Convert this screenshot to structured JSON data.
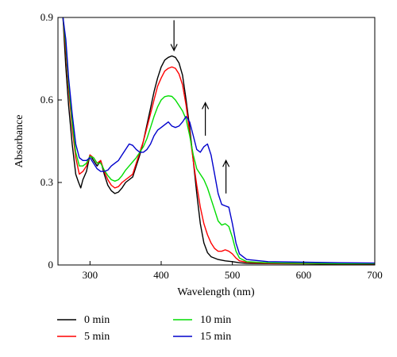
{
  "chart_data": {
    "type": "line",
    "xlabel": "Wavelength (nm)",
    "ylabel": "Absorbance",
    "xlim": [
      255,
      700
    ],
    "ylim": [
      0,
      0.9
    ],
    "xticks": [
      300,
      400,
      500,
      600,
      700
    ],
    "yticks": [
      0,
      0.3,
      0.6,
      0.9
    ],
    "xtick_labels": [
      "300",
      "400",
      "500",
      "600",
      "700"
    ],
    "ytick_labels": [
      "0",
      "0.3",
      "0.6",
      "0.9"
    ],
    "grid": false,
    "legend_position": "bottom",
    "series": [
      {
        "name": "0 min",
        "color": "#000000",
        "points": [
          [
            262,
            0.9
          ],
          [
            266,
            0.72
          ],
          [
            270,
            0.58
          ],
          [
            275,
            0.44
          ],
          [
            280,
            0.33
          ],
          [
            284,
            0.3
          ],
          [
            287,
            0.28
          ],
          [
            290,
            0.31
          ],
          [
            295,
            0.34
          ],
          [
            300,
            0.4
          ],
          [
            305,
            0.38
          ],
          [
            310,
            0.36
          ],
          [
            315,
            0.38
          ],
          [
            320,
            0.33
          ],
          [
            325,
            0.29
          ],
          [
            330,
            0.27
          ],
          [
            335,
            0.26
          ],
          [
            340,
            0.265
          ],
          [
            345,
            0.28
          ],
          [
            350,
            0.3
          ],
          [
            355,
            0.31
          ],
          [
            360,
            0.32
          ],
          [
            365,
            0.36
          ],
          [
            370,
            0.4
          ],
          [
            375,
            0.45
          ],
          [
            380,
            0.51
          ],
          [
            385,
            0.57
          ],
          [
            390,
            0.63
          ],
          [
            395,
            0.68
          ],
          [
            400,
            0.72
          ],
          [
            405,
            0.745
          ],
          [
            410,
            0.755
          ],
          [
            415,
            0.76
          ],
          [
            420,
            0.755
          ],
          [
            425,
            0.735
          ],
          [
            430,
            0.69
          ],
          [
            435,
            0.6
          ],
          [
            440,
            0.5
          ],
          [
            445,
            0.38
          ],
          [
            450,
            0.26
          ],
          [
            455,
            0.15
          ],
          [
            460,
            0.08
          ],
          [
            465,
            0.045
          ],
          [
            470,
            0.03
          ],
          [
            480,
            0.02
          ],
          [
            490,
            0.015
          ],
          [
            500,
            0.012
          ],
          [
            510,
            0.008
          ],
          [
            520,
            0.006
          ],
          [
            550,
            0.005
          ],
          [
            600,
            0.004
          ],
          [
            650,
            0.003
          ],
          [
            700,
            0.003
          ]
        ]
      },
      {
        "name": "5 min",
        "color": "#ff0000",
        "points": [
          [
            262,
            0.9
          ],
          [
            266,
            0.78
          ],
          [
            270,
            0.64
          ],
          [
            275,
            0.5
          ],
          [
            280,
            0.39
          ],
          [
            285,
            0.33
          ],
          [
            290,
            0.34
          ],
          [
            295,
            0.36
          ],
          [
            300,
            0.4
          ],
          [
            305,
            0.39
          ],
          [
            310,
            0.37
          ],
          [
            315,
            0.38
          ],
          [
            320,
            0.34
          ],
          [
            325,
            0.31
          ],
          [
            330,
            0.29
          ],
          [
            335,
            0.28
          ],
          [
            340,
            0.285
          ],
          [
            345,
            0.3
          ],
          [
            350,
            0.31
          ],
          [
            355,
            0.32
          ],
          [
            360,
            0.33
          ],
          [
            365,
            0.37
          ],
          [
            370,
            0.41
          ],
          [
            375,
            0.45
          ],
          [
            380,
            0.5
          ],
          [
            385,
            0.55
          ],
          [
            390,
            0.6
          ],
          [
            395,
            0.65
          ],
          [
            400,
            0.68
          ],
          [
            405,
            0.705
          ],
          [
            410,
            0.715
          ],
          [
            415,
            0.72
          ],
          [
            420,
            0.715
          ],
          [
            425,
            0.695
          ],
          [
            430,
            0.655
          ],
          [
            435,
            0.58
          ],
          [
            440,
            0.48
          ],
          [
            445,
            0.38
          ],
          [
            450,
            0.29
          ],
          [
            455,
            0.21
          ],
          [
            460,
            0.15
          ],
          [
            465,
            0.11
          ],
          [
            470,
            0.08
          ],
          [
            475,
            0.06
          ],
          [
            480,
            0.05
          ],
          [
            485,
            0.05
          ],
          [
            490,
            0.055
          ],
          [
            495,
            0.05
          ],
          [
            500,
            0.04
          ],
          [
            505,
            0.025
          ],
          [
            510,
            0.015
          ],
          [
            520,
            0.01
          ],
          [
            550,
            0.006
          ],
          [
            600,
            0.005
          ],
          [
            650,
            0.004
          ],
          [
            700,
            0.004
          ]
        ]
      },
      {
        "name": "10 min",
        "color": "#00dd00",
        "points": [
          [
            262,
            0.9
          ],
          [
            266,
            0.8
          ],
          [
            270,
            0.66
          ],
          [
            275,
            0.52
          ],
          [
            280,
            0.41
          ],
          [
            285,
            0.36
          ],
          [
            290,
            0.36
          ],
          [
            295,
            0.37
          ],
          [
            300,
            0.395
          ],
          [
            305,
            0.39
          ],
          [
            310,
            0.37
          ],
          [
            315,
            0.37
          ],
          [
            320,
            0.345
          ],
          [
            325,
            0.325
          ],
          [
            330,
            0.31
          ],
          [
            335,
            0.305
          ],
          [
            340,
            0.31
          ],
          [
            345,
            0.325
          ],
          [
            350,
            0.345
          ],
          [
            355,
            0.36
          ],
          [
            360,
            0.375
          ],
          [
            365,
            0.39
          ],
          [
            370,
            0.41
          ],
          [
            375,
            0.43
          ],
          [
            380,
            0.46
          ],
          [
            385,
            0.5
          ],
          [
            390,
            0.54
          ],
          [
            395,
            0.575
          ],
          [
            400,
            0.6
          ],
          [
            405,
            0.612
          ],
          [
            410,
            0.615
          ],
          [
            415,
            0.613
          ],
          [
            420,
            0.6
          ],
          [
            425,
            0.58
          ],
          [
            430,
            0.56
          ],
          [
            435,
            0.53
          ],
          [
            440,
            0.47
          ],
          [
            445,
            0.4
          ],
          [
            450,
            0.35
          ],
          [
            455,
            0.33
          ],
          [
            460,
            0.31
          ],
          [
            465,
            0.28
          ],
          [
            470,
            0.24
          ],
          [
            475,
            0.2
          ],
          [
            480,
            0.16
          ],
          [
            485,
            0.145
          ],
          [
            490,
            0.15
          ],
          [
            495,
            0.14
          ],
          [
            500,
            0.1
          ],
          [
            505,
            0.05
          ],
          [
            510,
            0.025
          ],
          [
            520,
            0.012
          ],
          [
            550,
            0.008
          ],
          [
            600,
            0.006
          ],
          [
            650,
            0.005
          ],
          [
            700,
            0.005
          ]
        ]
      },
      {
        "name": "15 min",
        "color": "#0000cc",
        "points": [
          [
            262,
            0.9
          ],
          [
            266,
            0.82
          ],
          [
            270,
            0.68
          ],
          [
            275,
            0.55
          ],
          [
            280,
            0.44
          ],
          [
            285,
            0.39
          ],
          [
            290,
            0.38
          ],
          [
            295,
            0.38
          ],
          [
            300,
            0.39
          ],
          [
            305,
            0.37
          ],
          [
            310,
            0.35
          ],
          [
            315,
            0.34
          ],
          [
            320,
            0.34
          ],
          [
            325,
            0.345
          ],
          [
            330,
            0.36
          ],
          [
            335,
            0.37
          ],
          [
            340,
            0.38
          ],
          [
            345,
            0.4
          ],
          [
            350,
            0.42
          ],
          [
            355,
            0.44
          ],
          [
            360,
            0.435
          ],
          [
            365,
            0.42
          ],
          [
            370,
            0.41
          ],
          [
            375,
            0.41
          ],
          [
            380,
            0.42
          ],
          [
            385,
            0.44
          ],
          [
            390,
            0.47
          ],
          [
            395,
            0.49
          ],
          [
            400,
            0.5
          ],
          [
            405,
            0.51
          ],
          [
            410,
            0.52
          ],
          [
            415,
            0.505
          ],
          [
            420,
            0.5
          ],
          [
            425,
            0.505
          ],
          [
            430,
            0.52
          ],
          [
            435,
            0.54
          ],
          [
            440,
            0.52
          ],
          [
            445,
            0.47
          ],
          [
            450,
            0.42
          ],
          [
            455,
            0.41
          ],
          [
            460,
            0.43
          ],
          [
            465,
            0.44
          ],
          [
            470,
            0.4
          ],
          [
            475,
            0.33
          ],
          [
            480,
            0.26
          ],
          [
            485,
            0.22
          ],
          [
            490,
            0.215
          ],
          [
            495,
            0.21
          ],
          [
            500,
            0.15
          ],
          [
            505,
            0.08
          ],
          [
            510,
            0.04
          ],
          [
            520,
            0.02
          ],
          [
            550,
            0.012
          ],
          [
            600,
            0.01
          ],
          [
            650,
            0.008
          ],
          [
            700,
            0.007
          ]
        ]
      }
    ],
    "annotations": [
      {
        "type": "arrow",
        "direction": "down",
        "x": 418,
        "y_start": 0.89,
        "y_end": 0.78
      },
      {
        "type": "arrow",
        "direction": "up",
        "x": 462,
        "y_start": 0.47,
        "y_end": 0.59
      },
      {
        "type": "arrow",
        "direction": "up",
        "x": 491,
        "y_start": 0.26,
        "y_end": 0.38
      }
    ]
  }
}
